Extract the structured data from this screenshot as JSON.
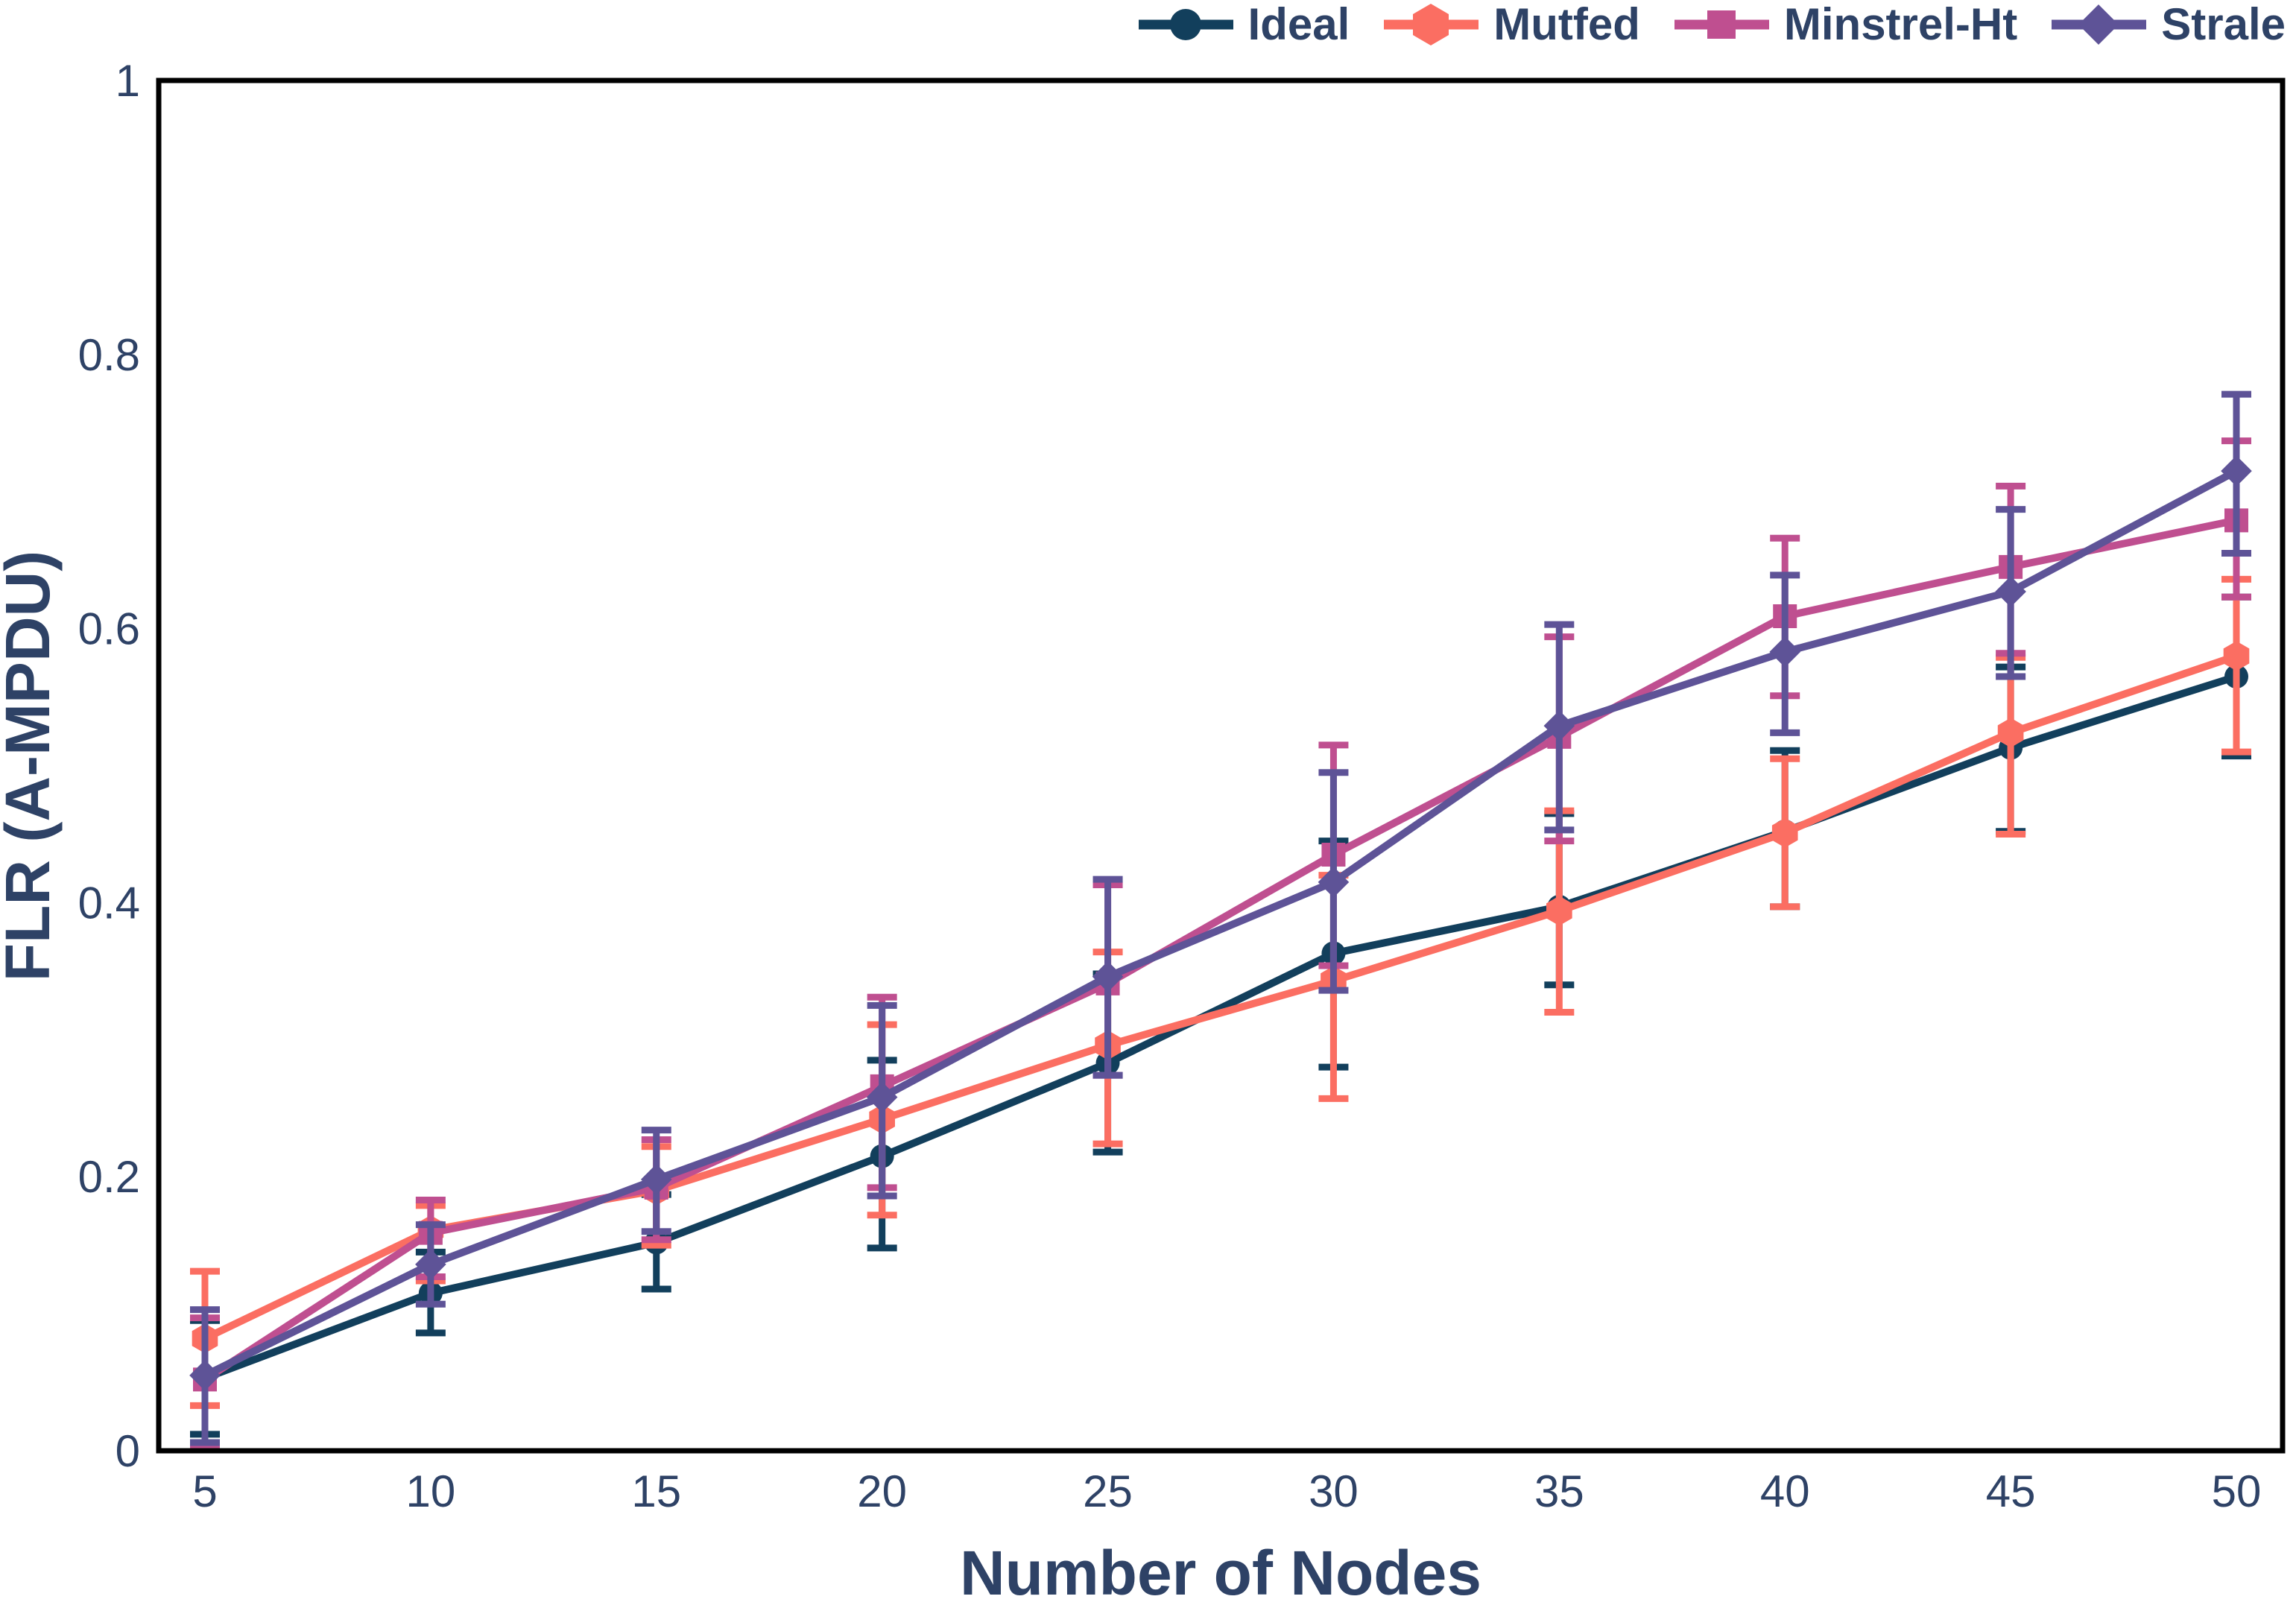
{
  "text_color": "#2e4266",
  "axis_color": "#000000",
  "chart_data": {
    "type": "line",
    "title": "",
    "xlabel": "Number of Nodes",
    "ylabel": "FLR (A-MPDU)",
    "x": [
      5,
      10,
      15,
      20,
      25,
      30,
      35,
      40,
      45,
      50
    ],
    "xlim": [
      5,
      50
    ],
    "ylim": [
      0,
      1
    ],
    "xticklabels": [
      "5",
      "10",
      "15",
      "20",
      "25",
      "30",
      "35",
      "40",
      "45",
      "50"
    ],
    "yticks": [
      0,
      0.2,
      0.4,
      0.6,
      0.8,
      1
    ],
    "yticklabels": [
      "0",
      "0.2",
      "0.4",
      "0.6",
      "0.8",
      "1"
    ],
    "grid": false,
    "legend_position": "top-right-horizontal",
    "error_bars": true,
    "series": [
      {
        "name": "Ideal",
        "color": "#123f5c",
        "marker": "circle",
        "values": [
          0.053,
          0.115,
          0.152,
          0.215,
          0.283,
          0.363,
          0.397,
          0.452,
          0.513,
          0.565
        ],
        "err_lo": [
          0.012,
          0.086,
          0.118,
          0.148,
          0.218,
          0.28,
          0.34,
          0.397,
          0.452,
          0.507
        ],
        "err_hi": [
          0.095,
          0.145,
          0.187,
          0.285,
          0.348,
          0.445,
          0.465,
          0.511,
          0.572,
          0.623
        ]
      },
      {
        "name": "Mutfed",
        "color": "#fb6e62",
        "marker": "hexagon",
        "values": [
          0.082,
          0.161,
          0.19,
          0.242,
          0.296,
          0.343,
          0.394,
          0.451,
          0.524,
          0.58
        ],
        "err_lo": [
          0.033,
          0.124,
          0.15,
          0.172,
          0.224,
          0.257,
          0.32,
          0.397,
          0.45,
          0.51
        ],
        "err_hi": [
          0.131,
          0.179,
          0.222,
          0.311,
          0.364,
          0.42,
          0.467,
          0.505,
          0.579,
          0.636
        ]
      },
      {
        "name": "Minstrel-Ht",
        "color": "#bf4f90",
        "marker": "square",
        "values": [
          0.052,
          0.159,
          0.192,
          0.266,
          0.341,
          0.435,
          0.521,
          0.609,
          0.645,
          0.679
        ],
        "err_lo": [
          0.002,
          0.127,
          0.154,
          0.192,
          0.274,
          0.354,
          0.445,
          0.551,
          0.582,
          0.623
        ],
        "err_hi": [
          0.097,
          0.183,
          0.227,
          0.331,
          0.413,
          0.515,
          0.594,
          0.666,
          0.704,
          0.737
        ]
      },
      {
        "name": "Strale",
        "color": "#5e5397",
        "marker": "diamond",
        "values": [
          0.055,
          0.136,
          0.198,
          0.258,
          0.346,
          0.415,
          0.529,
          0.583,
          0.627,
          0.715
        ],
        "err_lo": [
          0.006,
          0.107,
          0.16,
          0.186,
          0.274,
          0.336,
          0.453,
          0.524,
          0.565,
          0.655
        ],
        "err_hi": [
          0.103,
          0.165,
          0.234,
          0.325,
          0.417,
          0.495,
          0.603,
          0.639,
          0.687,
          0.771
        ]
      }
    ]
  }
}
